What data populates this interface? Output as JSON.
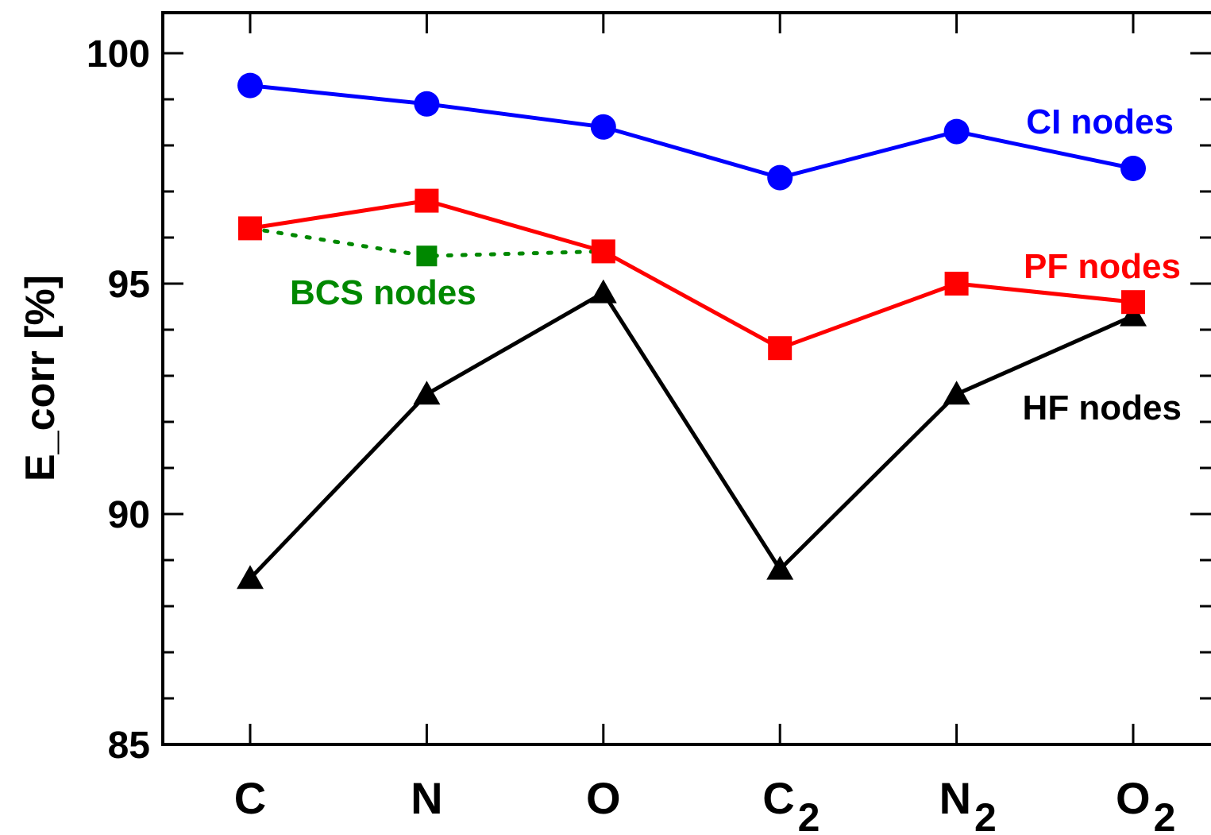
{
  "chart_data": {
    "type": "line",
    "ylabel": "E_corr  [%]",
    "xlabel": "",
    "title": "",
    "ylim": [
      85,
      100.9
    ],
    "yticks": [
      85,
      90,
      95,
      100
    ],
    "y_minor_step": 1,
    "categories": [
      {
        "base": "C",
        "sub": ""
      },
      {
        "base": "N",
        "sub": ""
      },
      {
        "base": "O",
        "sub": ""
      },
      {
        "base": "C",
        "sub": "2"
      },
      {
        "base": "N",
        "sub": "2"
      },
      {
        "base": "O",
        "sub": "2"
      }
    ],
    "series": [
      {
        "name": "CI nodes",
        "color": "#0000ff",
        "marker": "circle",
        "line": "solid",
        "x": [
          0,
          1,
          2,
          3,
          4,
          5
        ],
        "values": [
          99.3,
          98.9,
          98.4,
          97.3,
          98.3,
          97.5
        ]
      },
      {
        "name": "PF nodes",
        "color": "#ff0000",
        "marker": "square",
        "line": "solid",
        "x": [
          0,
          1,
          2,
          3,
          4,
          5
        ],
        "values": [
          96.2,
          96.8,
          95.7,
          93.6,
          95.0,
          94.6
        ]
      },
      {
        "name": "BCS nodes",
        "color": "#008800",
        "marker": "square",
        "line": "dotted",
        "x": [
          0,
          1,
          2
        ],
        "values": [
          96.2,
          95.6,
          95.7
        ]
      },
      {
        "name": "HF nodes",
        "color": "#000000",
        "marker": "triangle",
        "line": "solid",
        "x": [
          0,
          1,
          2,
          3,
          4,
          5
        ],
        "values": [
          88.6,
          92.6,
          94.8,
          88.8,
          92.6,
          94.3
        ]
      }
    ]
  }
}
